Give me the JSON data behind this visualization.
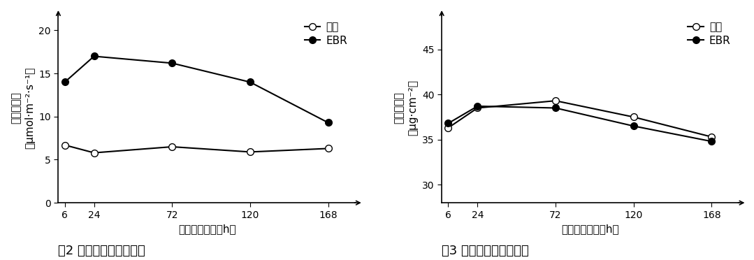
{
  "fig2": {
    "x": [
      6,
      24,
      72,
      120,
      168
    ],
    "control": [
      6.7,
      5.8,
      6.5,
      5.9,
      6.3
    ],
    "ebr": [
      14.0,
      17.0,
      16.2,
      14.0,
      9.3
    ],
    "ylabel_line1": "净光合速率",
    "ylabel_line2": "（μmol·m⁻²·s⁻¹）",
    "xlabel": "处理后小时数（h）",
    "caption": "图2 叶片净光合速率变化",
    "yticks": [
      0,
      5,
      10,
      15,
      20
    ],
    "ylim": [
      0,
      22
    ],
    "xticks": [
      6,
      24,
      72,
      120,
      168
    ]
  },
  "fig3": {
    "x": [
      6,
      24,
      72,
      120,
      168
    ],
    "control": [
      36.3,
      38.5,
      39.3,
      37.5,
      35.3
    ],
    "ebr": [
      36.8,
      38.7,
      38.5,
      36.5,
      34.8
    ],
    "ylabel_line1": "叶绿素含量",
    "ylabel_line2": "（μg·cm⁻²）",
    "xlabel": "处理后小时数（h）",
    "caption": "图3 叶片叶绿素含量变化",
    "yticks": [
      30,
      35,
      40,
      45
    ],
    "ylim": [
      28,
      49
    ],
    "xticks": [
      6,
      24,
      72,
      120,
      168
    ]
  },
  "legend_control": "对照",
  "legend_ebr": "EBR",
  "line_color": "#000000",
  "background_color": "#ffffff",
  "fontsize_label": 11,
  "fontsize_tick": 10,
  "fontsize_legend": 11,
  "fontsize_caption": 13
}
